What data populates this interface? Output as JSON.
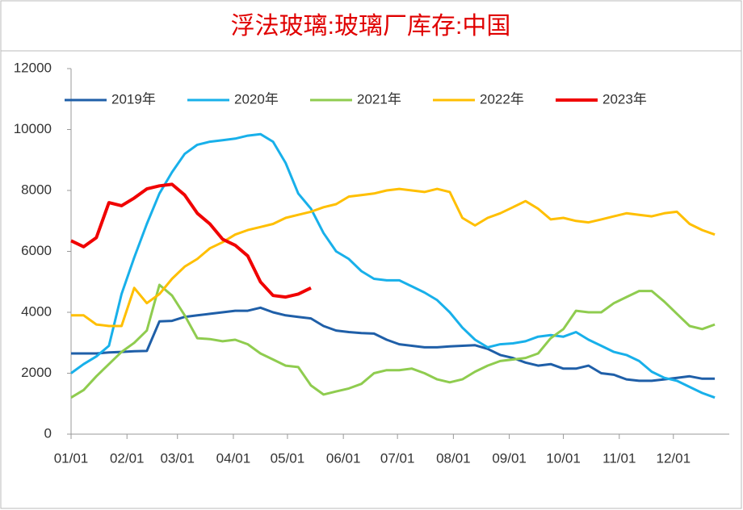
{
  "chart_data": {
    "type": "line",
    "title": "浮法玻璃:玻璃厂库存:中国",
    "x": [
      0,
      7,
      14,
      21,
      28,
      35,
      42,
      49,
      56,
      63,
      70,
      77,
      84,
      91,
      98,
      105,
      112,
      119,
      126,
      133,
      140,
      147,
      154,
      161,
      168,
      175,
      182,
      189,
      196,
      203,
      210,
      217,
      224,
      231,
      238,
      245,
      252,
      259,
      266,
      273,
      280,
      287,
      294,
      301,
      308,
      315,
      322,
      329,
      336,
      343,
      350,
      357
    ],
    "xlim": [
      0,
      365
    ],
    "xticks": [
      {
        "value": 0,
        "label": "01/01"
      },
      {
        "value": 31,
        "label": "02/01"
      },
      {
        "value": 59,
        "label": "03/01"
      },
      {
        "value": 90,
        "label": "04/01"
      },
      {
        "value": 120,
        "label": "05/01"
      },
      {
        "value": 151,
        "label": "06/01"
      },
      {
        "value": 181,
        "label": "07/01"
      },
      {
        "value": 212,
        "label": "08/01"
      },
      {
        "value": 243,
        "label": "09/01"
      },
      {
        "value": 273,
        "label": "10/01"
      },
      {
        "value": 304,
        "label": "11/01"
      },
      {
        "value": 334,
        "label": "12/01"
      }
    ],
    "ylim": [
      0,
      12000
    ],
    "yticks": [
      0,
      2000,
      4000,
      6000,
      8000,
      10000,
      12000
    ],
    "legend": "top",
    "grid": false,
    "series": [
      {
        "name": "2019年",
        "color": "#1f5fa8",
        "values": [
          2650,
          2650,
          2650,
          2680,
          2700,
          2720,
          2730,
          3700,
          3720,
          3850,
          3900,
          3950,
          4000,
          4050,
          4050,
          4150,
          4000,
          3900,
          3850,
          3800,
          3550,
          3400,
          3350,
          3320,
          3300,
          3100,
          2950,
          2900,
          2850,
          2850,
          2880,
          2900,
          2920,
          2800,
          2600,
          2500,
          2350,
          2250,
          2300,
          2150,
          2150,
          2250,
          2000,
          1950,
          1800,
          1750,
          1750,
          1800,
          1850,
          1900,
          1820,
          1820
        ]
      },
      {
        "name": "2020年",
        "color": "#18b0ea",
        "values": [
          2000,
          2300,
          2550,
          2900,
          4600,
          5800,
          6900,
          7900,
          8600,
          9200,
          9500,
          9600,
          9650,
          9700,
          9800,
          9850,
          9600,
          8900,
          7900,
          7400,
          6600,
          6000,
          5750,
          5350,
          5100,
          5050,
          5050,
          4850,
          4650,
          4400,
          4000,
          3500,
          3100,
          2850,
          2950,
          2980,
          3050,
          3200,
          3250,
          3200,
          3350,
          3100,
          2900,
          2700,
          2600,
          2400,
          2050,
          1850,
          1750,
          1550,
          1350,
          1200
        ]
      },
      {
        "name": "2021年",
        "color": "#8fcc4f",
        "values": [
          1200,
          1450,
          1900,
          2300,
          2700,
          3000,
          3400,
          4900,
          4550,
          3900,
          3150,
          3120,
          3050,
          3100,
          2950,
          2650,
          2450,
          2250,
          2200,
          1600,
          1300,
          1400,
          1500,
          1650,
          2000,
          2100,
          2100,
          2150,
          2000,
          1800,
          1700,
          1800,
          2050,
          2250,
          2400,
          2450,
          2500,
          2650,
          3150,
          3450,
          4050,
          4000,
          4000,
          4300,
          4500,
          4700,
          4700,
          4350,
          3950,
          3550,
          3450,
          3600
        ]
      },
      {
        "name": "2022年",
        "color": "#ffbf00",
        "values": [
          3900,
          3900,
          3600,
          3550,
          3550,
          4800,
          4300,
          4600,
          5100,
          5500,
          5750,
          6100,
          6300,
          6550,
          6700,
          6800,
          6900,
          7100,
          7200,
          7300,
          7450,
          7550,
          7800,
          7850,
          7900,
          8000,
          8050,
          8000,
          7950,
          8050,
          7950,
          7100,
          6850,
          7100,
          7250,
          7450,
          7650,
          7400,
          7050,
          7100,
          7000,
          6950,
          7050,
          7150,
          7250,
          7200,
          7150,
          7250,
          7300,
          6900,
          6700,
          6550
        ]
      },
      {
        "name": "2023年",
        "color": "#f00000",
        "values": [
          6350,
          6150,
          6450,
          7600,
          7500,
          7750,
          8050,
          8150,
          8200,
          7850,
          7250,
          6900,
          6400,
          6200,
          5850,
          5000,
          4550,
          4500,
          4600,
          4800,
          null,
          null,
          null,
          null,
          null,
          null,
          null,
          null,
          null,
          null,
          null,
          null,
          null,
          null,
          null,
          null,
          null,
          null,
          null,
          null,
          null,
          null,
          null,
          null,
          null,
          null,
          null,
          null,
          null,
          null,
          null,
          null
        ]
      }
    ]
  }
}
